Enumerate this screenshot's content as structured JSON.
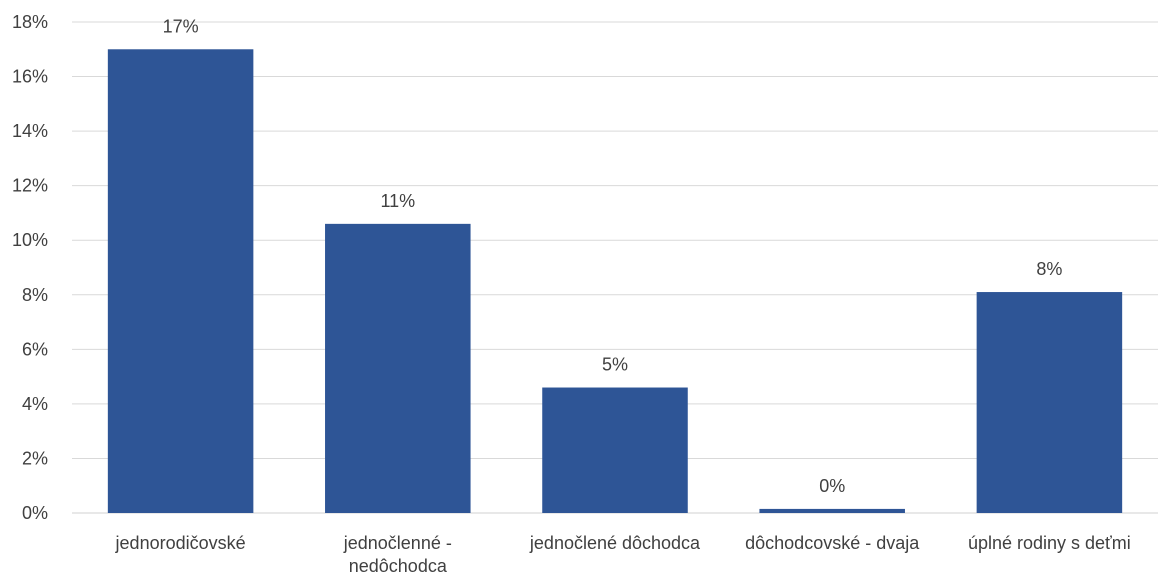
{
  "chart_data": {
    "type": "bar",
    "title": "",
    "xlabel": "",
    "ylabel": "",
    "categories": [
      [
        "jednorodičovské"
      ],
      [
        "jednočlenné -",
        "nedôchodca"
      ],
      [
        "jednočlené dôchodca"
      ],
      [
        "dôchodcovské - dvaja"
      ],
      [
        "úplné rodiny s deťmi"
      ]
    ],
    "values": [
      17.0,
      10.6,
      4.6,
      0.15,
      8.1
    ],
    "data_labels": [
      "17%",
      "11%",
      "5%",
      "0%",
      "8%"
    ],
    "ylim": [
      0,
      18
    ],
    "yticks": [
      0,
      2,
      4,
      6,
      8,
      10,
      12,
      14,
      16,
      18
    ],
    "ytick_labels": [
      "0%",
      "2%",
      "4%",
      "6%",
      "8%",
      "10%",
      "12%",
      "14%",
      "16%",
      "18%"
    ],
    "grid": true,
    "legend": "none",
    "bar_color": "#2e5596",
    "grid_color": "#d9d9d9",
    "text_color": "#404040"
  }
}
